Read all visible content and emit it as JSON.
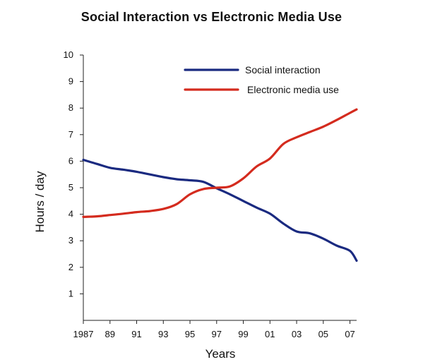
{
  "chart_data": {
    "type": "line",
    "title": "Social Interaction vs Electronic Media Use",
    "xlabel": "Years",
    "ylabel": "Hours / day",
    "ylim": [
      0,
      10
    ],
    "xlim": [
      1987,
      2007.5
    ],
    "y_ticks": [
      1,
      2,
      3,
      4,
      5,
      6,
      7,
      8,
      9,
      10
    ],
    "x_ticks": [
      {
        "value": 1987,
        "label": "1987"
      },
      {
        "value": 1989,
        "label": "89"
      },
      {
        "value": 1991,
        "label": "91"
      },
      {
        "value": 1993,
        "label": "93"
      },
      {
        "value": 1995,
        "label": "95"
      },
      {
        "value": 1997,
        "label": "97"
      },
      {
        "value": 1999,
        "label": "99"
      },
      {
        "value": 2001,
        "label": "01"
      },
      {
        "value": 2003,
        "label": "03"
      },
      {
        "value": 2005,
        "label": "05"
      },
      {
        "value": 2007,
        "label": "07"
      }
    ],
    "grid": false,
    "legend_position": "top-right",
    "series": [
      {
        "name": "Social interaction",
        "color": "#1a2a80",
        "points": [
          [
            1987,
            6.05
          ],
          [
            1988,
            5.9
          ],
          [
            1989,
            5.75
          ],
          [
            1990,
            5.68
          ],
          [
            1991,
            5.6
          ],
          [
            1992,
            5.5
          ],
          [
            1993,
            5.4
          ],
          [
            1994,
            5.32
          ],
          [
            1995,
            5.28
          ],
          [
            1996,
            5.22
          ],
          [
            1997,
            4.98
          ],
          [
            1998,
            4.75
          ],
          [
            1999,
            4.5
          ],
          [
            2000,
            4.25
          ],
          [
            2001,
            4.02
          ],
          [
            2002,
            3.65
          ],
          [
            2003,
            3.35
          ],
          [
            2004,
            3.28
          ],
          [
            2005,
            3.08
          ],
          [
            2006,
            2.82
          ],
          [
            2007,
            2.62
          ],
          [
            2007.5,
            2.25
          ]
        ]
      },
      {
        "name": "Electronic media use",
        "color": "#d42b1e",
        "points": [
          [
            1987,
            3.9
          ],
          [
            1988,
            3.92
          ],
          [
            1989,
            3.97
          ],
          [
            1990,
            4.02
          ],
          [
            1991,
            4.08
          ],
          [
            1992,
            4.12
          ],
          [
            1993,
            4.2
          ],
          [
            1994,
            4.38
          ],
          [
            1995,
            4.75
          ],
          [
            1996,
            4.95
          ],
          [
            1997,
            5.0
          ],
          [
            1998,
            5.05
          ],
          [
            1999,
            5.35
          ],
          [
            2000,
            5.8
          ],
          [
            2001,
            6.1
          ],
          [
            2002,
            6.65
          ],
          [
            2003,
            6.9
          ],
          [
            2004,
            7.1
          ],
          [
            2005,
            7.3
          ],
          [
            2006,
            7.55
          ],
          [
            2007,
            7.82
          ],
          [
            2007.5,
            7.95
          ]
        ]
      }
    ]
  }
}
